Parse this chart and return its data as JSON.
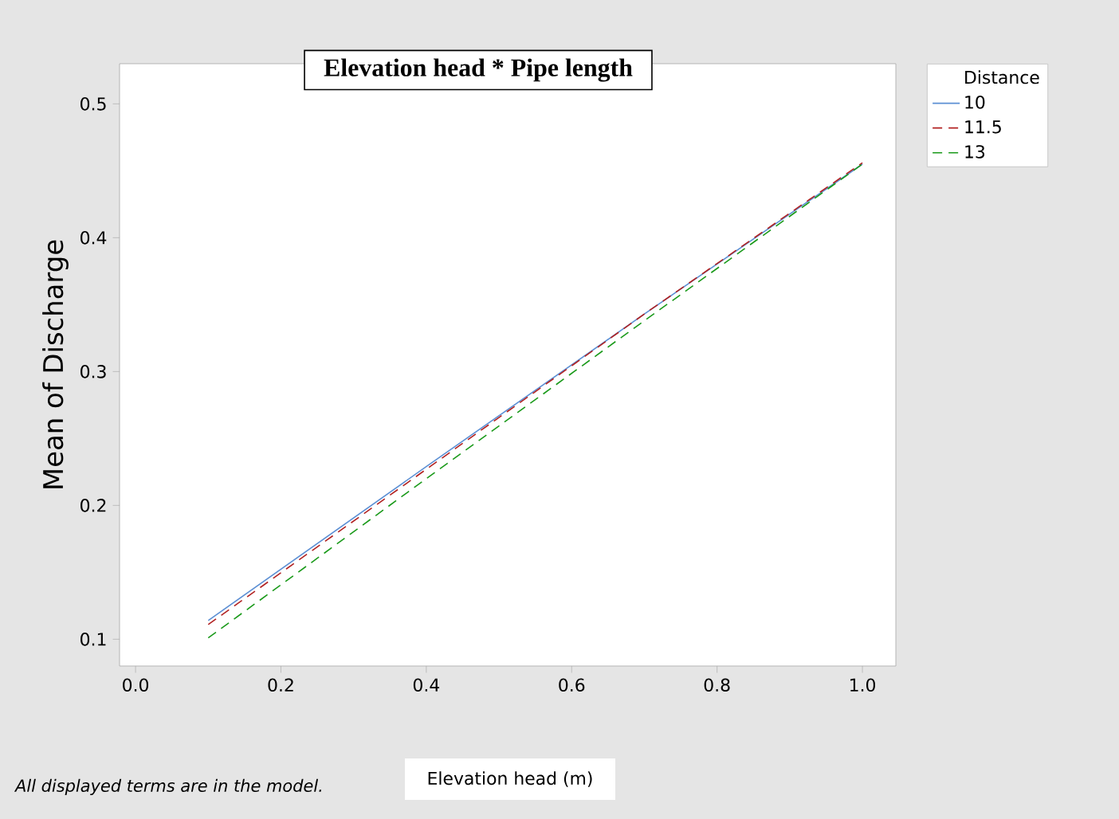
{
  "chart_data": {
    "type": "line",
    "title": "Elevation head * Pipe length",
    "xlabel": "Elevation head (m)",
    "ylabel": "Mean of Discharge",
    "legend_title": "Distance",
    "annotations": [
      "All displayed terms are in the model."
    ],
    "xlim": [
      -0.022,
      1.046
    ],
    "ylim": [
      0.08,
      0.53
    ],
    "xticks": [
      {
        "value": 0,
        "label": "0.0"
      },
      0.2,
      0.4,
      0.6,
      0.8,
      {
        "value": 1,
        "label": "1.0"
      }
    ],
    "yticks": [
      0.1,
      0.2,
      0.3,
      0.4,
      0.5
    ],
    "legend": "right",
    "grid": false,
    "x": [
      0.1,
      0.4,
      0.7,
      1.0
    ],
    "series": [
      {
        "name": "10",
        "color": "#5b8fd4",
        "line_style": "solid",
        "values": [
          0.114,
          0.229,
          0.343,
          0.455
        ]
      },
      {
        "name": "11.5",
        "color": "#b22222",
        "line_style": "dashed",
        "values": [
          0.111,
          0.227,
          0.343,
          0.456
        ]
      },
      {
        "name": "13",
        "color": "#1a9a1a",
        "line_style": "dashed",
        "values": [
          0.101,
          0.22,
          0.338,
          0.455
        ]
      }
    ]
  }
}
